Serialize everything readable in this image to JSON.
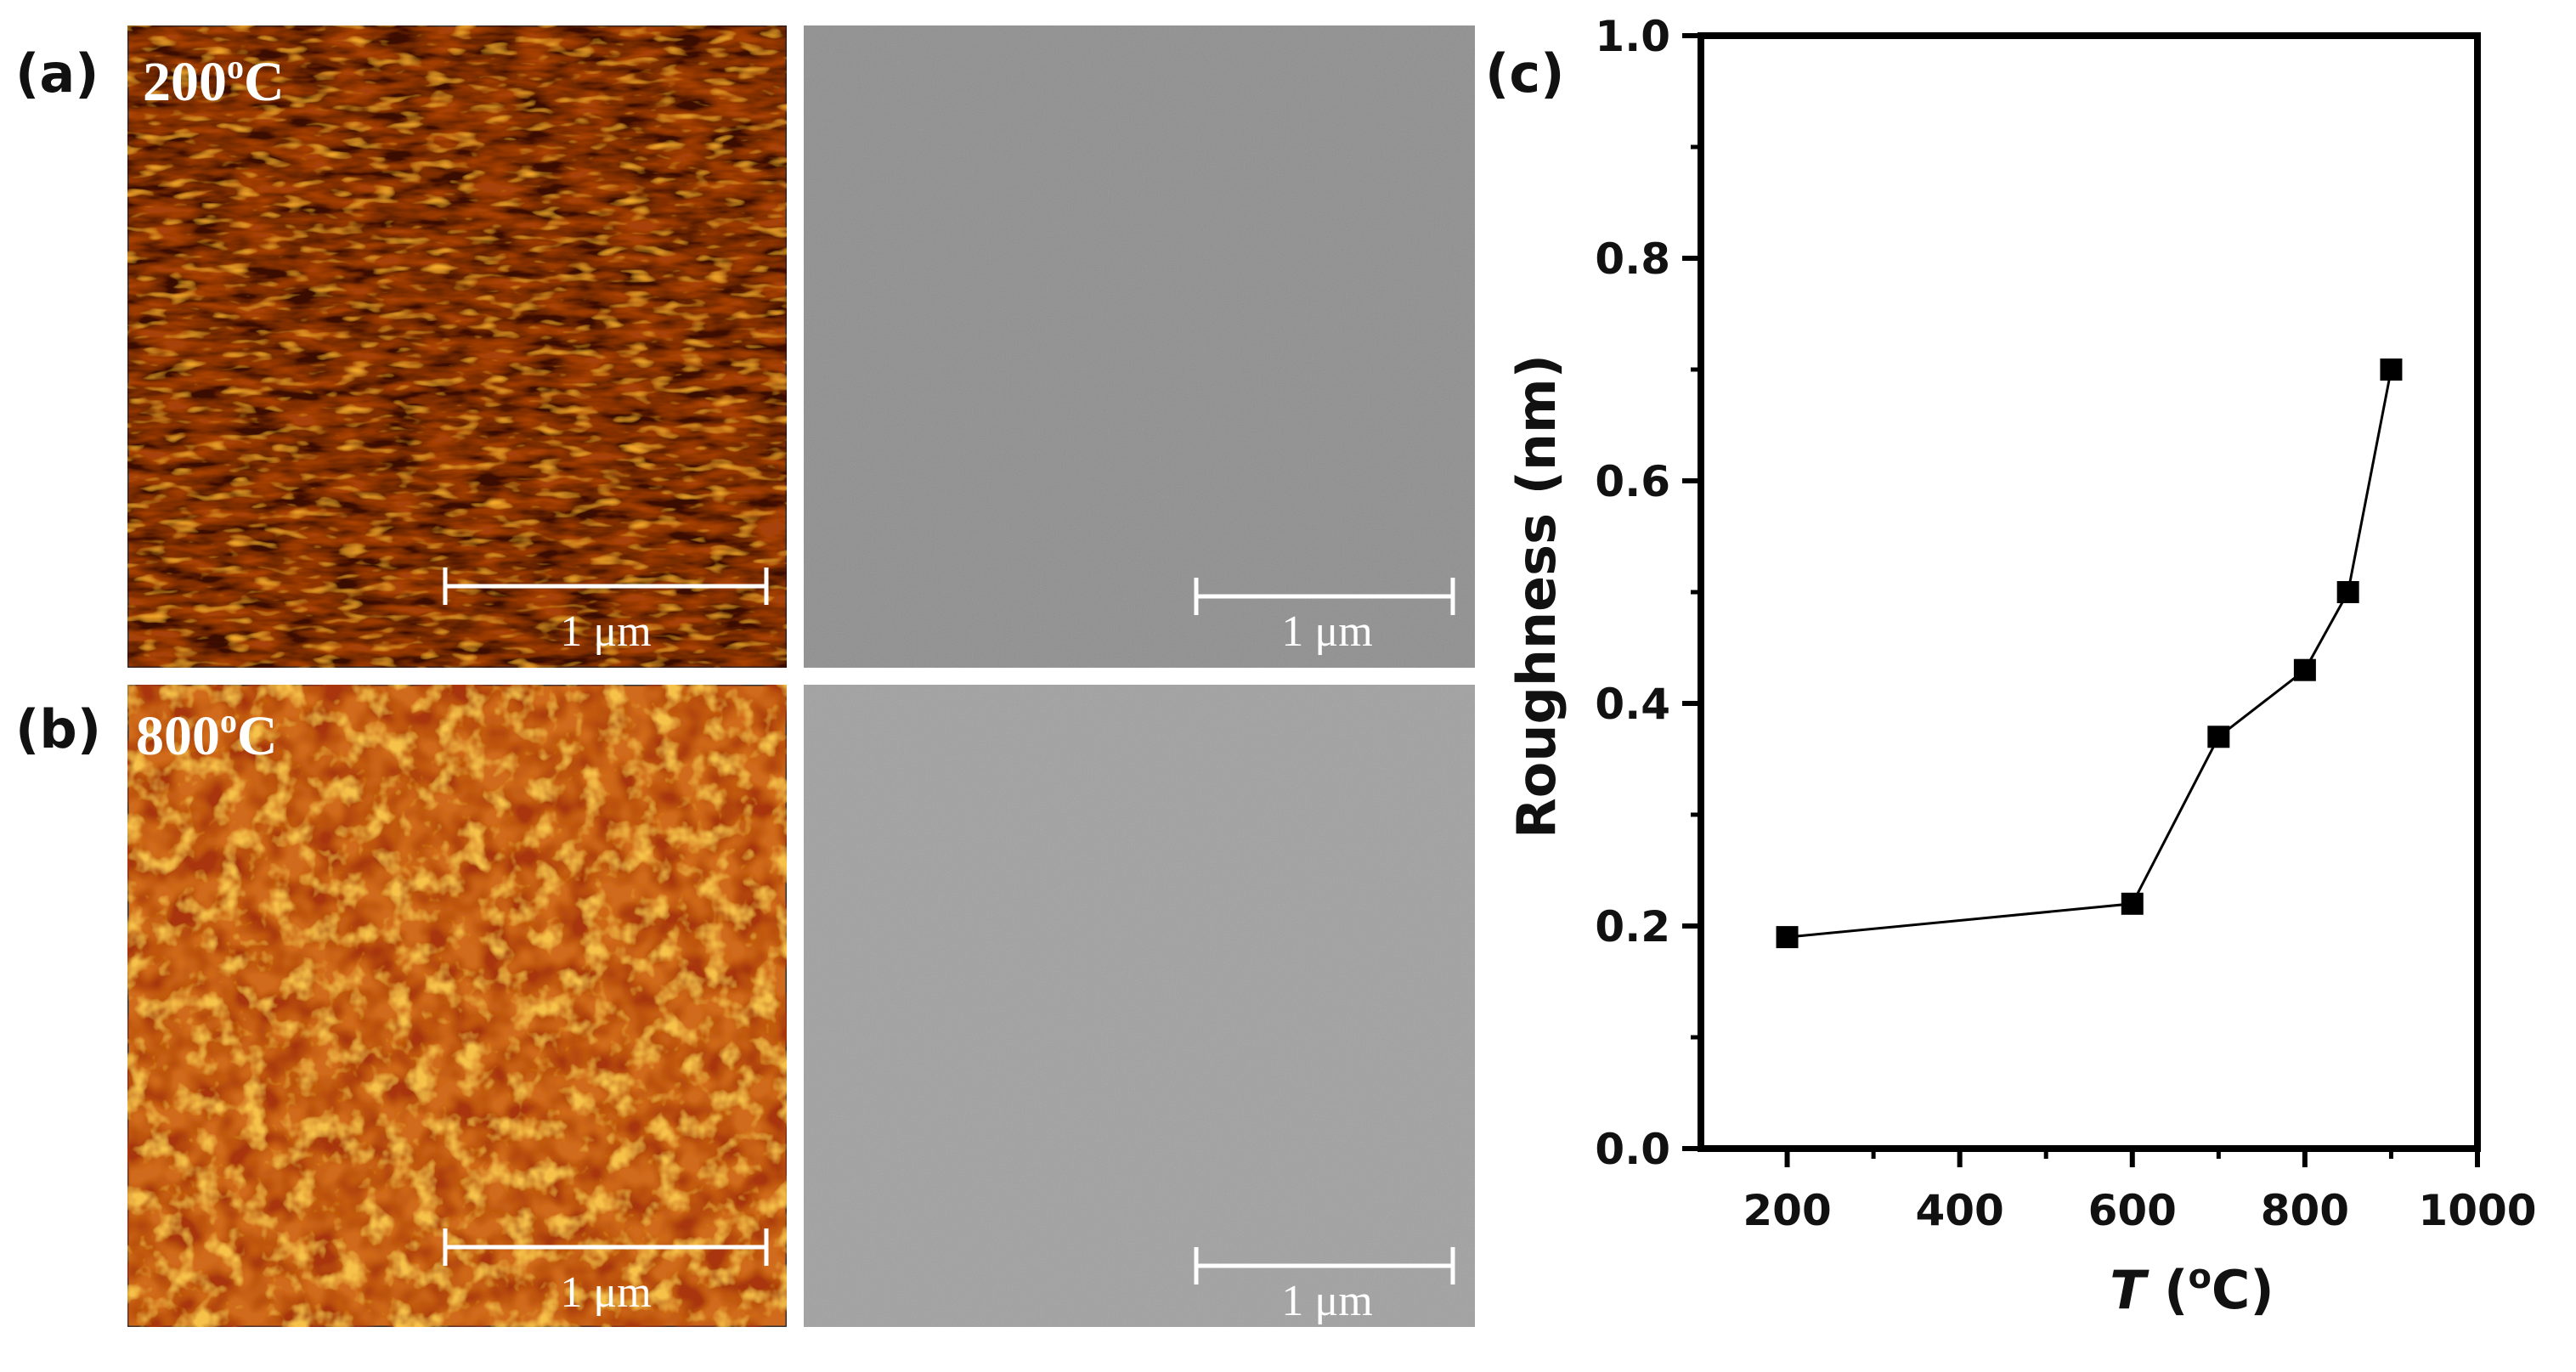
{
  "panels": {
    "a": {
      "letter": "(a)",
      "temperature": "200",
      "temperature_sup": "o",
      "temperature_unit": "C",
      "scale_bar_left": "1 μm",
      "scale_bar_right": "1 μm"
    },
    "b": {
      "letter": "(b)",
      "temperature": "800",
      "temperature_sup": "o",
      "temperature_unit": "C",
      "scale_bar_left": "1 μm",
      "scale_bar_right": "1 μm"
    },
    "c": {
      "letter": "(c)"
    }
  },
  "colors": {
    "afm_200_base": "#a8420f",
    "afm_800_base": "#d06a1a",
    "sem_200": "#8f8f8f",
    "sem_800": "#a1a1a1",
    "marker": "#000000"
  },
  "chart_data": {
    "type": "line",
    "x": [
      200,
      600,
      700,
      800,
      850,
      900
    ],
    "y": [
      0.19,
      0.22,
      0.37,
      0.43,
      0.5,
      0.7
    ],
    "xlabel_italic": "T",
    "xlabel_rest": " (",
    "xlabel_sup": "o",
    "xlabel_unit": "C)",
    "ylabel": "Roughness (nm)",
    "xlim": [
      100,
      1000
    ],
    "ylim": [
      0.0,
      1.0
    ],
    "xticks": [
      200,
      400,
      600,
      800,
      1000
    ],
    "yticks": [
      0.0,
      0.2,
      0.4,
      0.6,
      0.8,
      1.0
    ],
    "ytick_labels": [
      "0.0",
      "0.2",
      "0.4",
      "0.6",
      "0.8",
      "1.0"
    ],
    "marker": "square",
    "grid": false
  }
}
